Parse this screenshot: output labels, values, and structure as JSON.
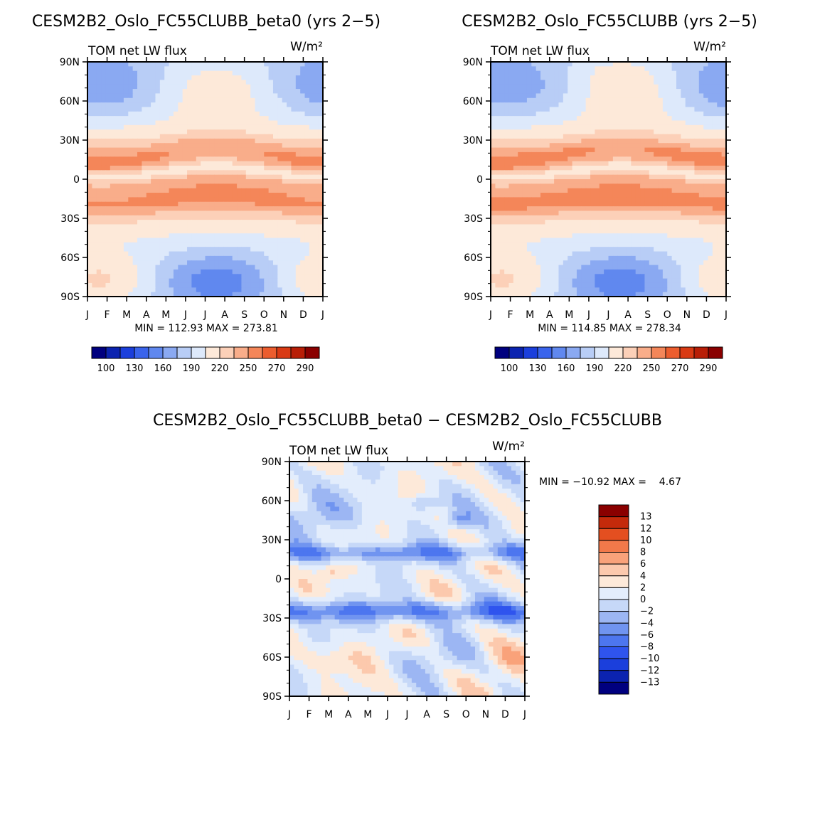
{
  "chart_data": [
    {
      "type": "heatmap",
      "title": "CESM2B2_Oslo_FC55CLUBB_beta0 (yrs 2−5)",
      "variable": "TOM net LW flux",
      "units": "W/m²",
      "x_ticks": [
        "J",
        "F",
        "M",
        "A",
        "M",
        "J",
        "J",
        "A",
        "S",
        "O",
        "N",
        "D",
        "J"
      ],
      "y_ticks": [
        "90N",
        "60N",
        "30N",
        "0",
        "30S",
        "60S",
        "90S"
      ],
      "min_max_text": "MIN = 112.93 MAX = 273.81",
      "min": 112.93,
      "max": 273.81,
      "colorbar": {
        "orientation": "horizontal",
        "labels": [
          "100",
          "130",
          "160",
          "190",
          "220",
          "250",
          "270",
          "290"
        ],
        "levels": [
          100,
          115,
          130,
          145,
          160,
          175,
          190,
          205,
          220,
          235,
          250,
          260,
          270,
          280,
          290
        ],
        "colors": [
          "#00007f",
          "#0b23b0",
          "#1b3fdc",
          "#3a64ec",
          "#6088ef",
          "#8aa9f2",
          "#b8cdf6",
          "#dde9fb",
          "#fde9d9",
          "#fcd0b8",
          "#f9ad8a",
          "#f48659",
          "#ec5d2e",
          "#d93a14",
          "#b81e07",
          "#8a0000"
        ]
      }
    },
    {
      "type": "heatmap",
      "title": "CESM2B2_Oslo_FC55CLUBB (yrs 2−5)",
      "variable": "TOM net LW flux",
      "units": "W/m²",
      "x_ticks": [
        "J",
        "F",
        "M",
        "A",
        "M",
        "J",
        "J",
        "A",
        "S",
        "O",
        "N",
        "D",
        "J"
      ],
      "y_ticks": [
        "90N",
        "60N",
        "30N",
        "0",
        "30S",
        "60S",
        "90S"
      ],
      "min_max_text": "MIN = 114.85 MAX = 278.34",
      "min": 114.85,
      "max": 278.34,
      "colorbar": {
        "orientation": "horizontal",
        "labels": [
          "100",
          "130",
          "160",
          "190",
          "220",
          "250",
          "270",
          "290"
        ],
        "levels": [
          100,
          115,
          130,
          145,
          160,
          175,
          190,
          205,
          220,
          235,
          250,
          260,
          270,
          280,
          290
        ],
        "colors": [
          "#00007f",
          "#0b23b0",
          "#1b3fdc",
          "#3a64ec",
          "#6088ef",
          "#8aa9f2",
          "#b8cdf6",
          "#dde9fb",
          "#fde9d9",
          "#fcd0b8",
          "#f9ad8a",
          "#f48659",
          "#ec5d2e",
          "#d93a14",
          "#b81e07",
          "#8a0000"
        ]
      }
    },
    {
      "type": "heatmap",
      "title": "CESM2B2_Oslo_FC55CLUBB_beta0 − CESM2B2_Oslo_FC55CLUBB",
      "variable": "TOM net LW flux",
      "units": "W/m²",
      "x_ticks": [
        "J",
        "F",
        "M",
        "A",
        "M",
        "J",
        "J",
        "A",
        "S",
        "O",
        "N",
        "D",
        "J"
      ],
      "y_ticks": [
        "90N",
        "60N",
        "30N",
        "0",
        "30S",
        "60S",
        "90S"
      ],
      "min_max_text": "MIN = −10.92 MAX =    4.67",
      "min": -10.92,
      "max": 4.67,
      "colorbar": {
        "orientation": "vertical",
        "labels": [
          "13",
          "12",
          "10",
          "8",
          "6",
          "4",
          "2",
          "0",
          "−2",
          "−4",
          "−6",
          "−8",
          "−10",
          "−12",
          "−13"
        ],
        "levels": [
          -13,
          -12,
          -10,
          -8,
          -6,
          -4,
          -2,
          0,
          2,
          4,
          6,
          8,
          10,
          12,
          13
        ],
        "colors": [
          "#00007f",
          "#0b23b0",
          "#1b3fdc",
          "#2f54ee",
          "#4d76ef",
          "#7094f0",
          "#9cb6f3",
          "#c6d8f8",
          "#e3edfc",
          "#fde9d9",
          "#fcc9ad",
          "#f9a27a",
          "#f2794a",
          "#e44f20",
          "#c42a0b",
          "#8a0000"
        ]
      }
    }
  ]
}
